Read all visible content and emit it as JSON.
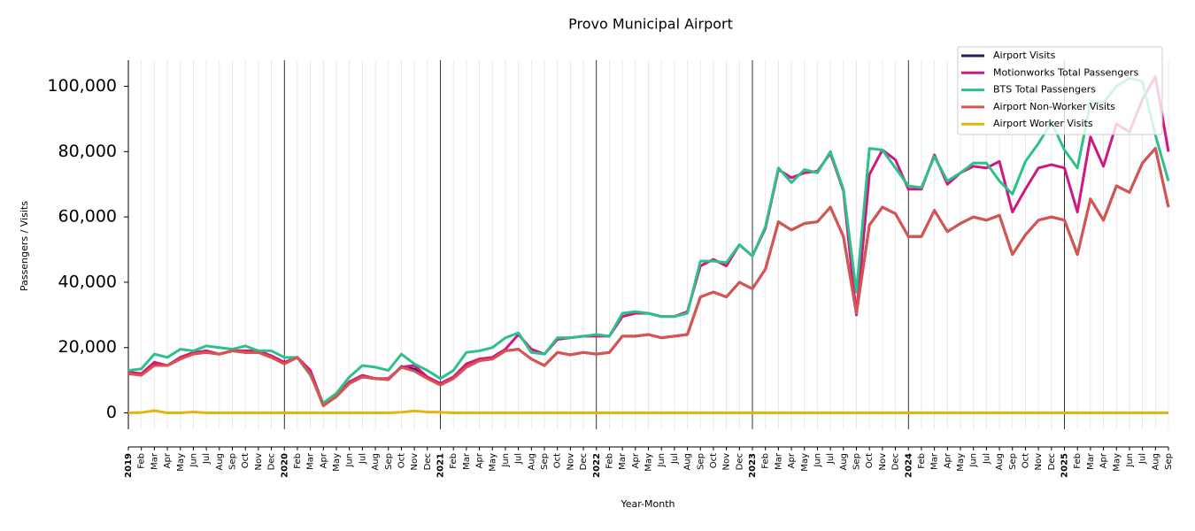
{
  "chart_data": {
    "type": "line",
    "title": "Provo Municipal Airport",
    "x_label": "Year-Month",
    "y_label": "Passengers / Visits",
    "categories": [
      "2019",
      "Feb",
      "Mar",
      "Apr",
      "May",
      "Jun",
      "Jul",
      "Aug",
      "Sep",
      "Oct",
      "Nov",
      "Dec",
      "2020",
      "Feb",
      "Mar",
      "Apr",
      "May",
      "Jun",
      "Jul",
      "Aug",
      "Sep",
      "Oct",
      "Nov",
      "Dec",
      "2021",
      "Feb",
      "Mar",
      "Apr",
      "May",
      "Jun",
      "Jul",
      "Aug",
      "Sep",
      "Oct",
      "Nov",
      "Dec",
      "2022",
      "Feb",
      "Mar",
      "Apr",
      "May",
      "Jun",
      "Jul",
      "Aug",
      "Sep",
      "Oct",
      "Nov",
      "Dec",
      "2023",
      "Feb",
      "Mar",
      "Apr",
      "May",
      "Jun",
      "Jul",
      "Aug",
      "Sep",
      "Oct",
      "Nov",
      "Dec",
      "2024",
      "Feb",
      "Mar",
      "Apr",
      "May",
      "Jun",
      "Jul",
      "Aug",
      "Sep",
      "Oct",
      "Nov",
      "Dec",
      "2025",
      "Feb",
      "Mar",
      "Apr",
      "May",
      "Jun",
      "Jul",
      "Aug",
      "Sep"
    ],
    "series": [
      {
        "name": "Airport Visits",
        "color": "#1f1f5e",
        "values": [
          12000,
          11600,
          15200,
          14500,
          16500,
          18300,
          18500,
          18000,
          19000,
          18500,
          18500,
          17000,
          15000,
          17000,
          12000,
          2200,
          5000,
          9000,
          11000,
          10500,
          10200,
          14200,
          13400,
          10800,
          8700,
          10500,
          14000,
          16000,
          16500,
          19000,
          19500,
          16500,
          14500,
          18500,
          17800,
          18500,
          18000,
          18500,
          23500,
          23500,
          24000,
          23000,
          23500,
          24000,
          35500,
          37000,
          35500,
          40000,
          38000,
          44000,
          58500,
          56000,
          58000,
          58500,
          63000,
          54000,
          30500,
          57500,
          63000,
          61000,
          54000,
          54000,
          62000,
          55500,
          58000,
          60000,
          59000,
          60500,
          48500,
          54500,
          59000,
          60000,
          59000,
          48500,
          65500,
          59000,
          69500,
          67500,
          76500,
          81000,
          63000
        ]
      },
      {
        "name": "Motionworks Total Passengers",
        "color": "#d0177f",
        "values": [
          12500,
          12000,
          15500,
          14500,
          17000,
          18500,
          19000,
          18000,
          19000,
          19000,
          19000,
          17500,
          15500,
          17000,
          13000,
          2500,
          5500,
          9500,
          11500,
          10500,
          10500,
          14000,
          14500,
          11000,
          9000,
          11000,
          15000,
          16500,
          17000,
          19500,
          24000,
          19500,
          18000,
          22500,
          23000,
          23500,
          23500,
          23500,
          29500,
          30500,
          30500,
          29500,
          29500,
          31000,
          45000,
          47000,
          45000,
          51500,
          48000,
          56500,
          74500,
          72000,
          73500,
          74000,
          79500,
          68000,
          30000,
          73000,
          80500,
          77500,
          68500,
          68500,
          79000,
          70000,
          73500,
          75500,
          75000,
          77000,
          61500,
          68500,
          75000,
          76000,
          75000,
          61500,
          84500,
          75500,
          88500,
          86000,
          96000,
          103000,
          80000
        ]
      },
      {
        "name": "BTS Total Passengers",
        "color": "#2ec08a",
        "values": [
          13000,
          13500,
          18000,
          17000,
          19500,
          19000,
          20500,
          20000,
          19500,
          20500,
          19000,
          19000,
          17000,
          17000,
          11500,
          3000,
          6000,
          11000,
          14500,
          14000,
          13000,
          18000,
          15000,
          13000,
          10500,
          13000,
          18500,
          19000,
          20000,
          23000,
          24500,
          18500,
          18000,
          23000,
          23000,
          23500,
          24000,
          23500,
          30500,
          31000,
          30500,
          29500,
          29500,
          30500,
          46500,
          46500,
          46000,
          51500,
          48000,
          57000,
          75000,
          70500,
          74500,
          73500,
          80000,
          68500,
          37000,
          81000,
          80500,
          75000,
          69500,
          69000,
          78500,
          71000,
          73500,
          76500,
          76500,
          71000,
          67000,
          77000,
          82500,
          89000,
          80500,
          75000,
          95000,
          95000,
          100000,
          102500,
          101500,
          85000,
          71000
        ]
      },
      {
        "name": "Airport Non-Worker Visits",
        "color": "#d9534f",
        "values": [
          12000,
          11500,
          14500,
          14500,
          16500,
          18000,
          18500,
          18000,
          19000,
          18500,
          18500,
          17000,
          15000,
          17000,
          12000,
          2200,
          5000,
          9000,
          11000,
          10500,
          10200,
          14000,
          12800,
          10500,
          8500,
          10500,
          14000,
          16000,
          16500,
          19000,
          19500,
          16500,
          14500,
          18500,
          17800,
          18500,
          18000,
          18500,
          23500,
          23500,
          24000,
          23000,
          23500,
          24000,
          35500,
          37000,
          35500,
          40000,
          38000,
          44000,
          58500,
          56000,
          58000,
          58500,
          63000,
          54000,
          30500,
          57500,
          63000,
          61000,
          54000,
          54000,
          62000,
          55500,
          58000,
          60000,
          59000,
          60500,
          48500,
          54500,
          59000,
          60000,
          59000,
          48500,
          65500,
          59000,
          69500,
          67500,
          76500,
          81000,
          63000
        ]
      },
      {
        "name": "Airport Worker Visits",
        "color": "#e3b50f",
        "values": [
          0,
          100,
          700,
          0,
          0,
          300,
          0,
          0,
          0,
          0,
          0,
          0,
          0,
          0,
          0,
          0,
          0,
          0,
          0,
          0,
          0,
          200,
          600,
          300,
          200,
          0,
          0,
          0,
          0,
          0,
          0,
          0,
          0,
          0,
          0,
          0,
          0,
          0,
          0,
          0,
          0,
          0,
          0,
          0,
          0,
          0,
          0,
          0,
          0,
          0,
          0,
          0,
          0,
          0,
          0,
          0,
          0,
          0,
          0,
          0,
          0,
          0,
          0,
          0,
          0,
          0,
          0,
          0,
          0,
          0,
          0,
          0,
          0,
          0,
          0,
          0,
          0,
          0,
          0,
          0,
          0
        ]
      }
    ],
    "ylim": [
      -5000,
      108000
    ],
    "yticks": [
      {
        "value": 0,
        "label": "0"
      },
      {
        "value": 20000,
        "label": "20,000"
      },
      {
        "value": 40000,
        "label": "40,000"
      },
      {
        "value": 60000,
        "label": "60,000"
      },
      {
        "value": 80000,
        "label": "80,000"
      },
      {
        "value": 100000,
        "label": "100,000"
      }
    ],
    "grid": true,
    "legend": "upper right"
  }
}
